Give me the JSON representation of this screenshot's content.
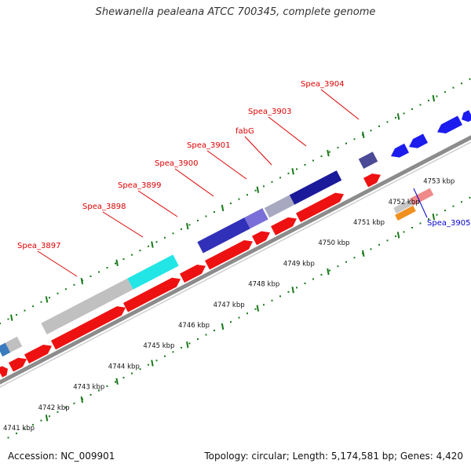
{
  "title": "Shewanella pealeana ATCC 700345, complete genome",
  "footer": {
    "accession": "Accession: NC_009901",
    "stats": "Topology: circular; Length: 5,174,581 bp; Genes: 4,420"
  },
  "colors": {
    "backbone": "#8c8c8c",
    "tick_green": "#1a7a1a",
    "cds_forward": "#ee1111",
    "cds_reverse": "#1c1cee",
    "label_red": "#dd0000",
    "label_blue": "#0000cc"
  },
  "ruler_labels": [
    "4741 kbp",
    "4742 kbp",
    "4743 kbp",
    "4744 kbp",
    "4745 kbp",
    "4746 kbp",
    "4747 kbp",
    "4748 kbp",
    "4749 kbp",
    "4750 kbp",
    "4751 kbp",
    "4752 kbp",
    "4753 kbp"
  ],
  "gene_labels": [
    {
      "text": "Spea_3897",
      "color": "#dd0000"
    },
    {
      "text": "Spea_3898",
      "color": "#dd0000"
    },
    {
      "text": "Spea_3899",
      "color": "#dd0000"
    },
    {
      "text": "Spea_3900",
      "color": "#dd0000"
    },
    {
      "text": "Spea_3901",
      "color": "#dd0000"
    },
    {
      "text": "fabG",
      "color": "#dd0000"
    },
    {
      "text": "Spea_3903",
      "color": "#dd0000"
    },
    {
      "text": "Spea_3904",
      "color": "#dd0000"
    },
    {
      "text": "Spea_3905",
      "color": "#0000cc"
    }
  ]
}
